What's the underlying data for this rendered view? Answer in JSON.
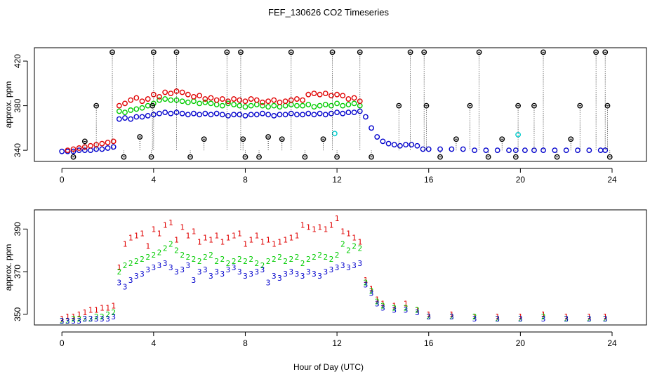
{
  "chart_data": {
    "title": "FEF_130626  CO2 Timeseries",
    "xlabel": "Hour of Day (UTC)",
    "panels": [
      {
        "id": "top",
        "type": "scatter",
        "ylabel": "approx. ppm",
        "xlim": [
          -1.2,
          25.5
        ],
        "ylim": [
          330,
          432
        ],
        "xticks": [
          0,
          4,
          8,
          12,
          16,
          20,
          24
        ],
        "yticks": [
          340,
          380,
          420
        ],
        "series": [
          {
            "color": "#0000cc",
            "marker": "circle",
            "x": [
              0.0,
              0.25,
              0.5,
              0.75,
              1.0,
              1.25,
              1.5,
              1.75,
              2.0,
              2.25,
              2.5,
              2.75,
              3.0,
              3.25,
              3.5,
              3.75,
              4.0,
              4.25,
              4.5,
              4.75,
              5.0,
              5.25,
              5.5,
              5.75,
              6.0,
              6.25,
              6.5,
              6.75,
              7.0,
              7.25,
              7.5,
              7.75,
              8.0,
              8.25,
              8.5,
              8.75,
              9.0,
              9.25,
              9.5,
              9.75,
              10.0,
              10.25,
              10.5,
              10.75,
              11.0,
              11.25,
              11.5,
              11.75,
              12.0,
              12.25,
              12.5,
              12.75,
              13.0,
              13.25,
              13.5,
              13.75,
              14.0,
              14.25,
              14.5,
              14.75,
              15.0,
              15.25,
              15.5,
              15.75,
              16.0,
              16.5,
              17.0,
              17.5,
              18.0,
              18.5,
              19.0,
              19.5,
              19.8,
              20.2,
              20.6,
              21.0,
              21.5,
              22.0,
              22.5,
              23.0,
              23.5,
              23.7
            ],
            "y": [
              339,
              339,
              339,
              340,
              340,
              340,
              341,
              341,
              342,
              343,
              368,
              369,
              368,
              370,
              370,
              371,
              372,
              373,
              374,
              373,
              374,
              373,
              372,
              373,
              372,
              373,
              372,
              373,
              372,
              371,
              372,
              372,
              371,
              372,
              372,
              373,
              372,
              371,
              372,
              372,
              373,
              372,
              372,
              373,
              372,
              373,
              372,
              373,
              374,
              373,
              374,
              374,
              375,
              370,
              360,
              352,
              348,
              346,
              345,
              344,
              345,
              345,
              344,
              341,
              341,
              341,
              341,
              341,
              340,
              340,
              340,
              340,
              340,
              340,
              340,
              340,
              340,
              340,
              340,
              340,
              340,
              340
            ]
          },
          {
            "color": "#00cc00",
            "marker": "circle",
            "x": [
              2.5,
              2.75,
              3.0,
              3.25,
              3.5,
              3.75,
              4.0,
              4.25,
              4.5,
              4.75,
              5.0,
              5.25,
              5.5,
              5.75,
              6.0,
              6.25,
              6.5,
              6.75,
              7.0,
              7.25,
              7.5,
              7.75,
              8.0,
              8.25,
              8.5,
              8.75,
              9.0,
              9.25,
              9.5,
              9.75,
              10.0,
              10.25,
              10.5,
              10.75,
              11.0,
              11.25,
              11.5,
              11.75,
              12.0,
              12.25,
              12.5,
              12.75,
              13.0
            ],
            "y": [
              375,
              374,
              376,
              377,
              378,
              380,
              382,
              385,
              386,
              385,
              385,
              384,
              383,
              384,
              382,
              383,
              382,
              381,
              380,
              382,
              381,
              380,
              379,
              380,
              381,
              380,
              379,
              380,
              379,
              380,
              381,
              380,
              380,
              381,
              379,
              380,
              381,
              380,
              382,
              380,
              381,
              382,
              380
            ]
          },
          {
            "color": "#e00000",
            "marker": "circle",
            "x": [
              0.25,
              0.5,
              0.75,
              1.0,
              1.25,
              1.5,
              1.75,
              2.0,
              2.25,
              2.5,
              2.75,
              3.0,
              3.25,
              3.5,
              3.75,
              4.0,
              4.25,
              4.5,
              4.75,
              5.0,
              5.25,
              5.5,
              5.75,
              6.0,
              6.25,
              6.5,
              6.75,
              7.0,
              7.25,
              7.5,
              7.75,
              8.0,
              8.25,
              8.5,
              8.75,
              9.0,
              9.25,
              9.5,
              9.75,
              10.0,
              10.25,
              10.5,
              10.75,
              11.0,
              11.25,
              11.5,
              11.75,
              12.0,
              12.25,
              12.5,
              12.75,
              13.0
            ],
            "y": [
              340,
              341,
              342,
              343,
              344,
              345,
              346,
              347,
              348,
              380,
              382,
              385,
              387,
              384,
              386,
              390,
              388,
              392,
              391,
              393,
              392,
              390,
              388,
              389,
              386,
              387,
              385,
              386,
              384,
              386,
              385,
              384,
              386,
              385,
              383,
              384,
              385,
              383,
              384,
              385,
              386,
              385,
              390,
              391,
              390,
              391,
              389,
              390,
              389,
              386,
              387,
              384
            ]
          },
          {
            "color": "#00cccc",
            "marker": "circle",
            "x": [
              11.9,
              19.9
            ],
            "y": [
              355,
              354
            ]
          },
          {
            "color": "#000000",
            "marker": "circle",
            "x": [
              0.5,
              1.0,
              1.5,
              2.2,
              2.7,
              3.4,
              3.9,
              3.95,
              4.0,
              5.0,
              5.6,
              6.2,
              7.2,
              7.8,
              7.9,
              8.0,
              8.6,
              9.0,
              9.6,
              10.0,
              10.6,
              11.4,
              11.8,
              12.0,
              13.0,
              13.5,
              14.7,
              15.2,
              15.8,
              15.9,
              16.5,
              17.2,
              17.8,
              18.2,
              18.6,
              19.2,
              19.8,
              19.9,
              20.6,
              21.0,
              21.6,
              22.2,
              22.6,
              23.3,
              23.7,
              23.8,
              23.9
            ],
            "y": [
              334,
              348,
              380,
              428,
              334,
              352,
              334,
              380,
              428,
              428,
              334,
              350,
              428,
              428,
              350,
              334,
              334,
              352,
              350,
              428,
              334,
              350,
              428,
              334,
              428,
              334,
              380,
              428,
              428,
              380,
              334,
              350,
              380,
              428,
              334,
              350,
              334,
              380,
              380,
              428,
              334,
              350,
              380,
              428,
              428,
              380,
              334
            ]
          }
        ]
      },
      {
        "id": "bottom",
        "type": "scatter",
        "ylabel": "approx. ppm",
        "xlim": [
          -1.2,
          25.5
        ],
        "ylim": [
          345,
          399
        ],
        "xticks": [
          0,
          4,
          8,
          12,
          16,
          20,
          24
        ],
        "yticks": [
          350,
          370,
          390
        ],
        "series": [
          {
            "label": "1",
            "color": "#e00000",
            "x": [
              0.0,
              0.25,
              0.5,
              0.75,
              1.0,
              1.25,
              1.5,
              1.75,
              2.0,
              2.25,
              2.5,
              2.75,
              3.0,
              3.25,
              3.5,
              3.75,
              4.0,
              4.25,
              4.5,
              4.75,
              5.0,
              5.25,
              5.5,
              5.75,
              6.0,
              6.25,
              6.5,
              6.75,
              7.0,
              7.25,
              7.5,
              7.75,
              8.0,
              8.25,
              8.5,
              8.75,
              9.0,
              9.25,
              9.5,
              9.75,
              10.0,
              10.25,
              10.5,
              10.75,
              11.0,
              11.25,
              11.5,
              11.75,
              12.0,
              12.25,
              12.5,
              12.75,
              13.0,
              13.25,
              13.5,
              13.75,
              14.0,
              14.5,
              15.0,
              15.5,
              16.0,
              17.0,
              18.0,
              19.0,
              20.0,
              21.0,
              22.0,
              23.0,
              23.7
            ],
            "y": [
              348,
              349,
              349,
              350,
              351,
              352,
              352,
              353,
              353,
              354,
              372,
              383,
              386,
              387,
              388,
              382,
              390,
              388,
              392,
              393,
              385,
              391,
              387,
              389,
              384,
              386,
              385,
              387,
              384,
              386,
              387,
              388,
              383,
              385,
              387,
              384,
              385,
              383,
              384,
              385,
              386,
              387,
              392,
              391,
              390,
              391,
              390,
              392,
              395,
              389,
              388,
              386,
              384,
              366,
              362,
              357,
              355,
              354,
              355,
              352,
              350,
              350,
              349,
              349,
              349,
              350,
              349,
              349,
              349
            ]
          },
          {
            "label": "2",
            "color": "#00cc00",
            "x": [
              0.0,
              0.25,
              0.5,
              0.75,
              1.0,
              1.25,
              1.5,
              1.75,
              2.0,
              2.25,
              2.5,
              2.75,
              3.0,
              3.25,
              3.5,
              3.75,
              4.0,
              4.25,
              4.5,
              4.75,
              5.0,
              5.25,
              5.5,
              5.75,
              6.0,
              6.25,
              6.5,
              6.75,
              7.0,
              7.25,
              7.5,
              7.75,
              8.0,
              8.25,
              8.5,
              8.75,
              9.0,
              9.25,
              9.5,
              9.75,
              10.0,
              10.25,
              10.5,
              10.75,
              11.0,
              11.25,
              11.5,
              11.75,
              12.0,
              12.25,
              12.5,
              12.75,
              13.0,
              13.25,
              13.5,
              13.75,
              14.0,
              14.5,
              15.0,
              15.5,
              16.0,
              17.0,
              18.0,
              19.0,
              20.0,
              21.0,
              22.0,
              23.0,
              23.7
            ],
            "y": [
              347,
              347,
              348,
              348,
              348,
              348,
              349,
              349,
              350,
              351,
              370,
              373,
              374,
              375,
              376,
              377,
              378,
              379,
              381,
              383,
              380,
              378,
              377,
              376,
              375,
              377,
              378,
              375,
              376,
              374,
              375,
              376,
              375,
              376,
              374,
              373,
              375,
              376,
              377,
              375,
              376,
              377,
              374,
              376,
              377,
              378,
              377,
              376,
              378,
              383,
              380,
              382,
              381,
              365,
              361,
              356,
              354,
              353,
              353,
              352,
              349,
              349,
              349,
              348,
              348,
              349,
              348,
              348,
              348
            ]
          },
          {
            "label": "3",
            "color": "#0000cc",
            "x": [
              0.0,
              0.25,
              0.5,
              0.75,
              1.0,
              1.25,
              1.5,
              1.75,
              2.0,
              2.25,
              2.5,
              2.75,
              3.0,
              3.25,
              3.5,
              3.75,
              4.0,
              4.25,
              4.5,
              4.75,
              5.0,
              5.25,
              5.5,
              5.75,
              6.0,
              6.25,
              6.5,
              6.75,
              7.0,
              7.25,
              7.5,
              7.75,
              8.0,
              8.25,
              8.5,
              8.75,
              9.0,
              9.25,
              9.5,
              9.75,
              10.0,
              10.25,
              10.5,
              10.75,
              11.0,
              11.25,
              11.5,
              11.75,
              12.0,
              12.25,
              12.5,
              12.75,
              13.0,
              13.25,
              13.5,
              13.75,
              14.0,
              14.5,
              15.0,
              15.5,
              16.0,
              17.0,
              18.0,
              19.0,
              20.0,
              21.0,
              22.0,
              23.0,
              23.7
            ],
            "y": [
              347,
              347,
              347,
              347,
              348,
              348,
              348,
              348,
              348,
              349,
              365,
              363,
              366,
              368,
              369,
              371,
              372,
              373,
              374,
              372,
              370,
              371,
              373,
              366,
              370,
              371,
              368,
              370,
              369,
              371,
              372,
              370,
              368,
              369,
              370,
              371,
              365,
              368,
              367,
              369,
              370,
              369,
              368,
              370,
              369,
              368,
              370,
              371,
              372,
              373,
              372,
              373,
              374,
              364,
              360,
              355,
              353,
              352,
              352,
              351,
              349,
              349,
              348,
              348,
              348,
              348,
              348,
              348,
              348
            ]
          }
        ]
      }
    ]
  }
}
